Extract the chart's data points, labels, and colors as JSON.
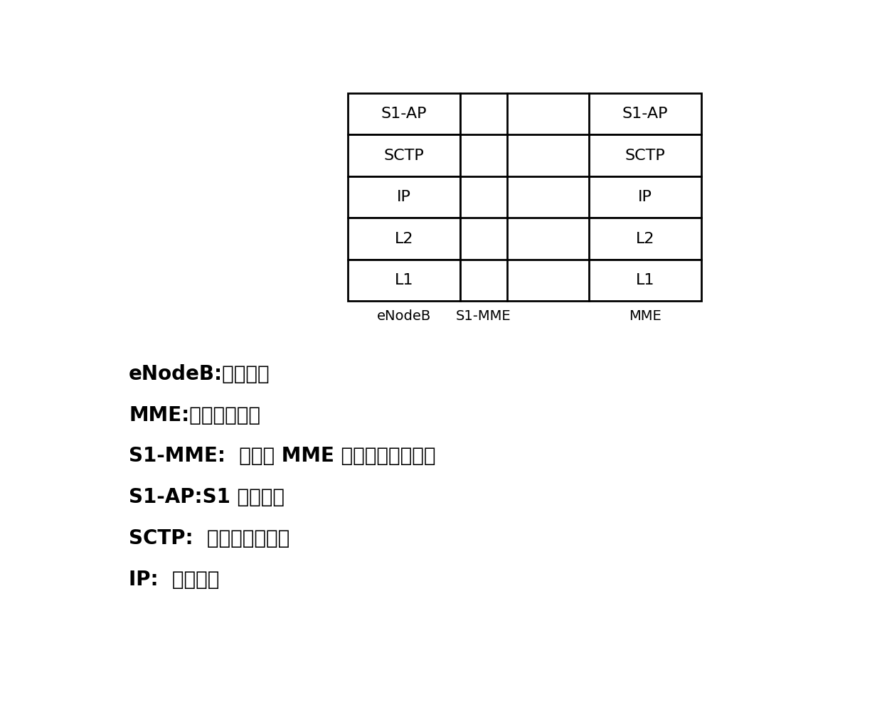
{
  "background_color": "#ffffff",
  "layers": [
    "S1-AP",
    "SCTP",
    "IP",
    "L2",
    "L1"
  ],
  "label_eNodeB": "eNodeB",
  "label_S1MME": "S1-MME",
  "label_MME": "MME",
  "annotations": [
    "eNodeB:演进基站",
    "MME:移动管理实体",
    "S1-MME:  基站和 MME 之间的控制面接口",
    "S1-AP:S1 应用协议",
    "SCTP:  流控制传输协议",
    "IP:  网际协议"
  ],
  "line_color": "#000000",
  "text_color": "#000000",
  "font_size_layer": 16,
  "font_size_label": 14,
  "font_size_annotation": 20
}
